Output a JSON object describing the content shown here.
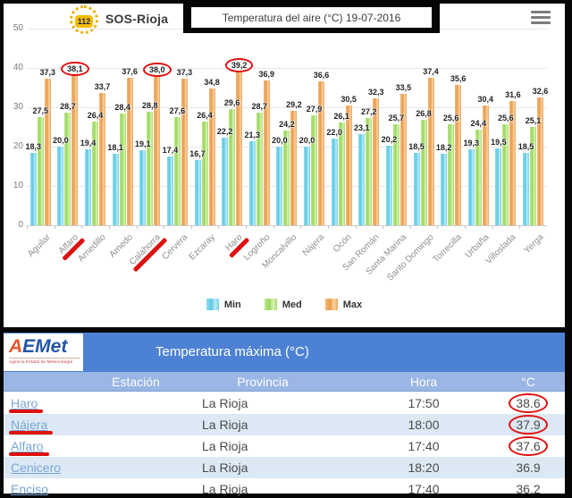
{
  "header": {
    "logo_112": "112",
    "app_name": "SOS-Rioja",
    "title": "Temperatura del aire (°C) 19-07-2016",
    "menu_icon": "hamburger-icon"
  },
  "colors": {
    "min": "#6fcfe8",
    "med": "#a5dd6b",
    "max": "#eda55c",
    "annotation_red": "#dd1111",
    "table_header": "#4d81d3",
    "table_subheader": "#9ab6e4",
    "table_alt_row": "#dce9f5",
    "link_blue": "#79a7d7"
  },
  "chart_data": {
    "type": "bar",
    "title": "Temperatura del aire (°C) 19-07-2016",
    "xlabel": "",
    "ylabel": "",
    "ylim": [
      0,
      50
    ],
    "yticks": [
      0,
      10,
      20,
      30,
      40,
      50
    ],
    "grid": true,
    "legend_position": "bottom",
    "decimal_separator": ",",
    "categories": [
      "Aguilar",
      "Alfaro",
      "Arnedillo",
      "Arnedo",
      "Calahorra",
      "Cervera",
      "Ezcaray",
      "Haro",
      "Logroño",
      "Moncalvillo",
      "Nájera",
      "Ocón",
      "San Román",
      "Santa Marina",
      "Santo Domingo",
      "Torrecilla",
      "Urbaña",
      "Villoslada",
      "Yerga"
    ],
    "series": [
      {
        "name": "Min",
        "key": "min",
        "color": "#6fcfe8",
        "values": [
          18.3,
          20.0,
          19.4,
          18.1,
          19.1,
          17.4,
          16.7,
          22.2,
          21.3,
          20.0,
          20.0,
          22.0,
          23.1,
          20.2,
          18.5,
          18.2,
          19.3,
          19.5,
          18.5
        ]
      },
      {
        "name": "Med",
        "key": "med",
        "color": "#a5dd6b",
        "values": [
          27.5,
          28.7,
          26.4,
          28.4,
          28.8,
          27.6,
          26.4,
          29.6,
          28.7,
          24.2,
          27.9,
          26.1,
          27.2,
          25.7,
          26.8,
          25.6,
          24.4,
          25.6,
          25.1
        ]
      },
      {
        "name": "Max",
        "key": "max",
        "color": "#eda55c",
        "values": [
          37.3,
          38.1,
          33.7,
          37.6,
          38.0,
          37.3,
          34.8,
          39.2,
          36.9,
          29.2,
          36.6,
          30.5,
          32.3,
          33.5,
          37.4,
          35.6,
          30.4,
          31.6,
          32.6
        ]
      }
    ],
    "annotations": {
      "circled_max_labels": [
        "Alfaro",
        "Calahorra",
        "Haro"
      ],
      "underlined_categories": [
        "Alfaro",
        "Calahorra",
        "Haro"
      ]
    }
  },
  "aemet_table": {
    "logo_text": "AEMet",
    "logo_subtext": "Agencia Estatal de Meteorología",
    "title": "Temperatura máxima (°C)",
    "columns": [
      "Estación",
      "Provincia",
      "Hora",
      "°C"
    ],
    "rows": [
      {
        "estacion": "Haro",
        "provincia": "La Rioja",
        "hora": "17:50",
        "temp": "38.6",
        "underlined": true,
        "circled": true
      },
      {
        "estacion": "Nájera",
        "provincia": "La Rioja",
        "hora": "18:00",
        "temp": "37.9",
        "underlined": true,
        "circled": true
      },
      {
        "estacion": "Alfaro",
        "provincia": "La Rioja",
        "hora": "17:40",
        "temp": "37.6",
        "underlined": true,
        "circled": true
      },
      {
        "estacion": "Cenicero",
        "provincia": "La Rioja",
        "hora": "18:20",
        "temp": "36.9",
        "underlined": false,
        "circled": false
      },
      {
        "estacion": "Enciso",
        "provincia": "La Rioja",
        "hora": "17:40",
        "temp": "36.2",
        "underlined": false,
        "circled": false
      }
    ]
  }
}
